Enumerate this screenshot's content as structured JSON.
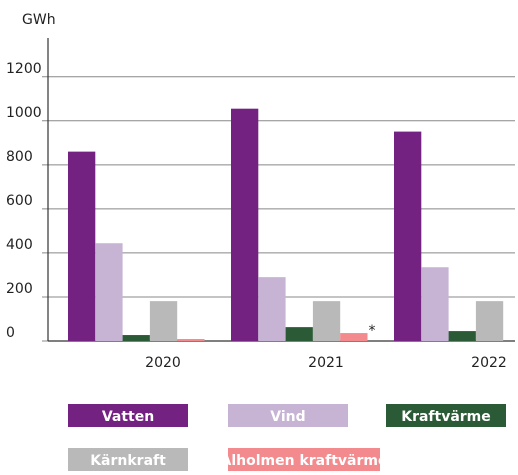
{
  "chart_data": {
    "type": "bar",
    "y_label": "GWh",
    "categories": [
      "2020",
      "2021",
      "2022"
    ],
    "series": [
      {
        "name": "Vatten",
        "color": "#742282",
        "values": [
          860,
          1055,
          951
        ]
      },
      {
        "name": "Vind",
        "color": "#c7b3d4",
        "values": [
          444,
          290,
          335
        ]
      },
      {
        "name": "Kraftvärme",
        "color": "#2b5a36",
        "values": [
          27,
          63,
          45
        ]
      },
      {
        "name": "Kärnkraft",
        "color": "#b9b9b9",
        "values": [
          181,
          181,
          181
        ]
      },
      {
        "name": "Alholmen kraftvärme",
        "color": "#f28a8e",
        "values": [
          9,
          36,
          null
        ]
      }
    ],
    "annotation": "*",
    "ylim": [
      0,
      1376
    ],
    "yticks": [
      0,
      200,
      400,
      600,
      800,
      1000,
      1200
    ],
    "grid": true
  }
}
